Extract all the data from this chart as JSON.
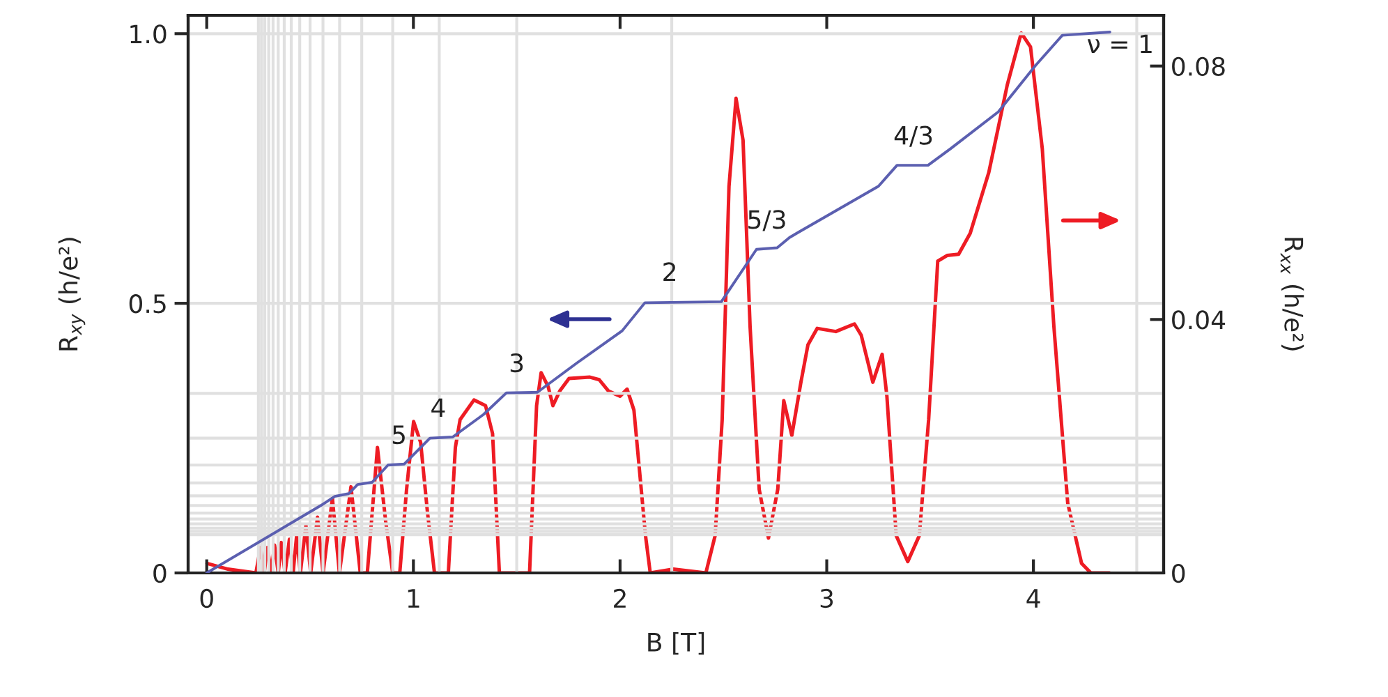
{
  "chart_data": {
    "type": "line",
    "xlabel": "B [T]",
    "ylabel": "R$_{xy}$ (h/e²)",
    "y2label": "R$_{xx}$ (h/e²)",
    "xlim": [
      -0.09,
      4.63
    ],
    "xticks": [
      0,
      1,
      2,
      3,
      4
    ],
    "ylim": [
      0,
      1.034
    ],
    "yticks": [
      0,
      0.5,
      {
        "value": 1.0,
        "label": "1.0"
      }
    ],
    "y2lim": [
      0,
      0.088
    ],
    "y2ticks": [
      0,
      0.04,
      0.08
    ],
    "legend": false,
    "grid": false,
    "series": [
      {
        "color": "#5b5fb0",
        "x": [
          0,
          0.552,
          0.62,
          0.687,
          0.73,
          0.8,
          0.877,
          0.956,
          1.08,
          1.19,
          1.34,
          1.45,
          1.6,
          1.79,
          2.01,
          2.12,
          2.49,
          2.66,
          2.76,
          2.82,
          2.86,
          3.25,
          3.34,
          3.49,
          3.6,
          3.83,
          4.01,
          4.14,
          4.37
        ],
        "values": [
          0,
          0.125,
          0.142,
          0.147,
          0.164,
          0.168,
          0.2,
          0.202,
          0.25,
          0.252,
          0.294,
          0.334,
          0.335,
          0.389,
          0.449,
          0.501,
          0.503,
          0.6,
          0.603,
          0.622,
          0.631,
          0.717,
          0.756,
          0.756,
          0.787,
          0.855,
          0.941,
          0.997,
          1.003
        ]
      },
      {
        "color": "#ee1c24",
        "axis": "y2",
        "x": [
          0.002,
          0.103,
          0.238,
          0.26,
          0.278,
          0.294,
          0.312,
          0.328,
          0.346,
          0.361,
          0.379,
          0.4,
          0.418,
          0.435,
          0.453,
          0.48,
          0.503,
          0.536,
          0.563,
          0.608,
          0.642,
          0.698,
          0.743,
          0.777,
          0.826,
          0.866,
          0.9,
          0.934,
          0.967,
          1.001,
          1.035,
          1.068,
          1.102,
          1.169,
          1.203,
          1.226,
          1.293,
          1.349,
          1.383,
          1.416,
          1.562,
          1.596,
          1.618,
          1.652,
          1.675,
          1.708,
          1.753,
          1.854,
          1.899,
          1.944,
          2.0,
          2.034,
          2.067,
          2.123,
          2.146,
          2.258,
          2.415,
          2.46,
          2.494,
          2.527,
          2.561,
          2.595,
          2.629,
          2.673,
          2.718,
          2.763,
          2.792,
          2.831,
          2.875,
          2.909,
          2.954,
          3.044,
          3.134,
          3.167,
          3.223,
          3.268,
          3.291,
          3.336,
          3.392,
          3.448,
          3.493,
          3.537,
          3.582,
          3.638,
          3.694,
          3.784,
          3.874,
          3.941,
          3.986,
          4.043,
          4.099,
          4.166,
          4.233,
          4.278,
          4.368
        ],
        "values": [
          0.0015,
          0.0006,
          0,
          0.004,
          0,
          0.004,
          0,
          0.0044,
          0,
          0.0048,
          0,
          0.0053,
          0,
          0.0059,
          0,
          0.0075,
          0,
          0.0088,
          0,
          0.0118,
          0,
          0.0136,
          0,
          0,
          0.0198,
          0.0081,
          0,
          0,
          0.0132,
          0.0239,
          0.0206,
          0.0096,
          0,
          0,
          0.0198,
          0.0242,
          0.0273,
          0.0264,
          0.022,
          0,
          0,
          0.0264,
          0.0316,
          0.0294,
          0.0264,
          0.0287,
          0.0307,
          0.0309,
          0.0305,
          0.0287,
          0.0279,
          0.029,
          0.0257,
          0.0059,
          0,
          0.0006,
          0,
          0.0059,
          0.0242,
          0.061,
          0.0749,
          0.0683,
          0.0389,
          0.0132,
          0.0055,
          0.0132,
          0.0272,
          0.0217,
          0.0301,
          0.036,
          0.0386,
          0.0381,
          0.0393,
          0.0375,
          0.0301,
          0.0345,
          0.0279,
          0.0059,
          0.0018,
          0.0059,
          0.0242,
          0.0492,
          0.0501,
          0.0503,
          0.0536,
          0.0632,
          0.0771,
          0.0852,
          0.083,
          0.0669,
          0.0389,
          0.011,
          0.0015,
          0,
          0
        ]
      }
    ],
    "annotations": [
      {
        "text": "5",
        "x": 0.93,
        "y": 0.201
      },
      {
        "text": "4",
        "x": 1.12,
        "y": 0.251
      },
      {
        "text": "3",
        "x": 1.5,
        "y": 0.334
      },
      {
        "text": "2",
        "x": 2.24,
        "y": 0.503
      },
      {
        "text": "5/3",
        "x": 2.71,
        "y": 0.6
      },
      {
        "text": "4/3",
        "x": 3.42,
        "y": 0.756
      },
      "ν = 1"
    ],
    "ref_lines": [
      {
        "axis": "x",
        "value": 4.5,
        "color": "#e0e0e0"
      },
      {
        "axis": "x",
        "value": 2.25,
        "color": "#e0e0e0"
      },
      {
        "axis": "x",
        "value": 1.5,
        "color": "#e0e0e0"
      },
      {
        "axis": "x",
        "value": 1.125,
        "color": "#e0e0e0"
      },
      {
        "axis": "x",
        "value": 0.9,
        "color": "#e0e0e0"
      },
      {
        "axis": "x",
        "value": 0.75,
        "color": "#e0e0e0"
      },
      {
        "axis": "x",
        "value": 0.643,
        "color": "#e0e0e0"
      },
      {
        "axis": "x",
        "value": 0.5625,
        "color": "#e0e0e0"
      },
      {
        "axis": "x",
        "value": 0.5,
        "color": "#e0e0e0"
      },
      {
        "axis": "x",
        "value": 0.45,
        "color": "#e0e0e0"
      },
      {
        "axis": "x",
        "value": 0.409,
        "color": "#e0e0e0"
      },
      {
        "axis": "x",
        "value": 0.375,
        "color": "#e0e0e0"
      },
      {
        "axis": "x",
        "value": 0.346,
        "color": "#e0e0e0"
      },
      {
        "axis": "x",
        "value": 0.321,
        "color": "#e0e0e0"
      },
      {
        "axis": "x",
        "value": 0.3,
        "color": "#e0e0e0"
      },
      {
        "axis": "x",
        "value": 0.281,
        "color": "#e0e0e0"
      },
      {
        "axis": "x",
        "value": 0.265,
        "color": "#e0e0e0"
      },
      {
        "axis": "x",
        "value": 0.25,
        "color": "#e0e0e0"
      },
      {
        "axis": "y",
        "value": 1.0,
        "color": "#e0e0e0"
      },
      {
        "axis": "y",
        "value": 0.5,
        "color": "#e0e0e0"
      },
      {
        "axis": "y",
        "value": 0.333,
        "color": "#e0e0e0"
      },
      {
        "axis": "y",
        "value": 0.25,
        "color": "#e0e0e0"
      },
      {
        "axis": "y",
        "value": 0.2,
        "color": "#e0e0e0"
      },
      {
        "axis": "y",
        "value": 0.167,
        "color": "#e0e0e0"
      },
      {
        "axis": "y",
        "value": 0.143,
        "color": "#e0e0e0"
      },
      {
        "axis": "y",
        "value": 0.125,
        "color": "#e0e0e0"
      },
      {
        "axis": "y",
        "value": 0.111,
        "color": "#e0e0e0"
      },
      {
        "axis": "y",
        "value": 0.1,
        "color": "#e0e0e0"
      },
      {
        "axis": "y",
        "value": 0.091,
        "color": "#e0e0e0"
      },
      {
        "axis": "y",
        "value": 0.083,
        "color": "#e0e0e0"
      },
      {
        "axis": "y",
        "value": 0.077,
        "color": "#e0e0e0"
      },
      {
        "axis": "y",
        "value": 0.071,
        "color": "#e0e0e0"
      }
    ]
  }
}
